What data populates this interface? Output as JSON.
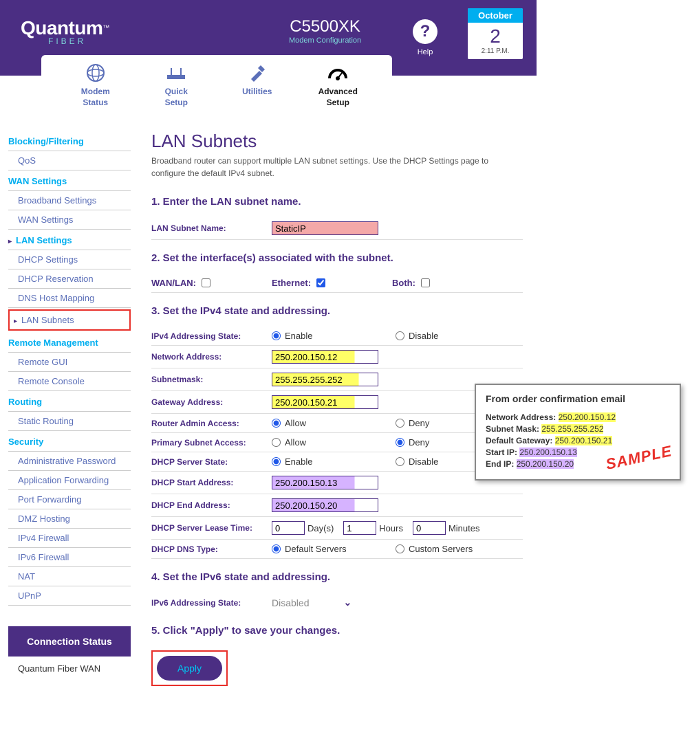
{
  "colors": {
    "brand_purple": "#4b2e83",
    "brand_cyan": "#00aeef",
    "nav_inactive": "#5b6fb8",
    "highlight_red": "#e8302a",
    "hl_yellow": "#ffff66",
    "hl_purple": "#d6b3ff"
  },
  "logo": {
    "main": "Quantum",
    "sub": "FIBER"
  },
  "model": {
    "name": "C5500XK",
    "sub": "Modem Configuration"
  },
  "help": {
    "symbol": "?",
    "label": "Help"
  },
  "date": {
    "month": "October",
    "day": "2",
    "time": "2:11 P.M."
  },
  "tabs": {
    "modem": "Modem Status",
    "quick": "Quick Setup",
    "utilities": "Utilities",
    "advanced": "Advanced Setup"
  },
  "sidebar": {
    "blocking": "Blocking/Filtering",
    "qos": "QoS",
    "wan_settings": "WAN Settings",
    "broadband": "Broadband Settings",
    "wan_settings2": "WAN Settings",
    "lan_settings": "LAN Settings",
    "dhcp_settings": "DHCP Settings",
    "dhcp_res": "DHCP Reservation",
    "dns_host": "DNS Host Mapping",
    "lan_subnets": "LAN Subnets",
    "remote_mgmt": "Remote Management",
    "remote_gui": "Remote GUI",
    "remote_console": "Remote Console",
    "routing": "Routing",
    "static_routing": "Static Routing",
    "security": "Security",
    "admin_pw": "Administrative Password",
    "app_fwd": "Application Forwarding",
    "port_fwd": "Port Forwarding",
    "dmz": "DMZ Hosting",
    "ipv4_fw": "IPv4 Firewall",
    "ipv6_fw": "IPv6 Firewall",
    "nat": "NAT",
    "upnp": "UPnP"
  },
  "conn": {
    "status": "Connection Status",
    "sub": "Quantum Fiber WAN"
  },
  "page": {
    "title": "LAN Subnets",
    "desc": "Broadband router can support multiple LAN subnet settings. Use the DHCP Settings page to configure the default IPv4 subnet."
  },
  "step1": {
    "head": "1. Enter the LAN subnet name.",
    "label": "LAN Subnet Name:",
    "value": "StaticIP"
  },
  "step2": {
    "head": "2. Set the interface(s) associated with the subnet.",
    "wanlan": "WAN/LAN:",
    "ethernet": "Ethernet:",
    "both": "Both:"
  },
  "step3": {
    "head": "3. Set the IPv4 state and addressing.",
    "addr_state": "IPv4 Addressing State:",
    "enable": "Enable",
    "disable": "Disable",
    "net_addr": "Network Address:",
    "net_addr_val": "250.200.150.12",
    "mask": "Subnetmask:",
    "mask_val": "255.255.255.252",
    "gw": "Gateway Address:",
    "gw_val": "250.200.150.21",
    "admin": "Router Admin Access:",
    "allow": "Allow",
    "deny": "Deny",
    "psub": "Primary Subnet Access:",
    "dhcp_state": "DHCP Server State:",
    "dhcp_start": "DHCP Start Address:",
    "dhcp_start_val": "250.200.150.13",
    "dhcp_end": "DHCP End Address:",
    "dhcp_end_val": "250.200.150.20",
    "lease": "DHCP Server Lease Time:",
    "lease_d": "0",
    "lease_h": "1",
    "lease_m": "0",
    "days": "Day(s)",
    "hours": "Hours",
    "minutes": "Minutes",
    "dns_type": "DHCP DNS Type:",
    "default_servers": "Default Servers",
    "custom_servers": "Custom Servers"
  },
  "step4": {
    "head": "4. Set the IPv6 state and addressing.",
    "label": "IPv6 Addressing State:",
    "value": "Disabled"
  },
  "step5": {
    "head": "5. Click \"Apply\" to save your changes.",
    "apply": "Apply"
  },
  "callout": {
    "title": "From order confirmation email",
    "net": "Network Address:",
    "net_v": "250.200.150.12",
    "mask": "Subnet Mask:",
    "mask_v": "255.255.255.252",
    "gw": "Default Gateway:",
    "gw_v": "250.200.150.21",
    "start": "Start IP:",
    "start_v": "250.200.150.13",
    "end": "End IP:",
    "end_v": "250.200.150.20",
    "sample": "SAMPLE"
  }
}
